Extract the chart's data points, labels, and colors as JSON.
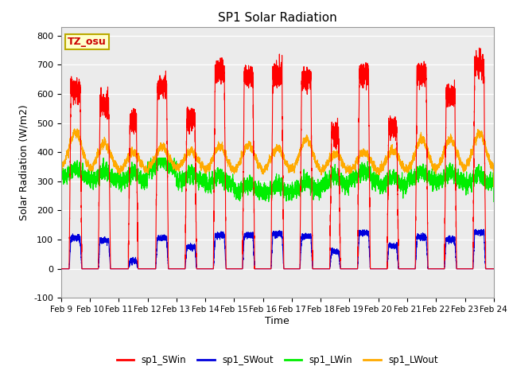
{
  "title": "SP1 Solar Radiation",
  "xlabel": "Time",
  "ylabel": "Solar Radiation (W/m2)",
  "ylim": [
    -100,
    830
  ],
  "yticks": [
    -100,
    0,
    100,
    200,
    300,
    400,
    500,
    600,
    700,
    800
  ],
  "x_labels": [
    "Feb 9",
    "Feb 10",
    "Feb 11",
    "Feb 12",
    "Feb 13",
    "Feb 14",
    "Feb 15",
    "Feb 16",
    "Feb 17",
    "Feb 18",
    "Feb 19",
    "Feb 20",
    "Feb 21",
    "Feb 22",
    "Feb 23",
    "Feb 24"
  ],
  "color_SWin": "#ff0000",
  "color_SWout": "#0000dd",
  "color_LWin": "#00ee00",
  "color_LWout": "#ffaa00",
  "bg_color": "#ebebeb",
  "annotation_text": "TZ_osu",
  "annotation_bg": "#ffffcc",
  "annotation_border": "#bbaa00"
}
